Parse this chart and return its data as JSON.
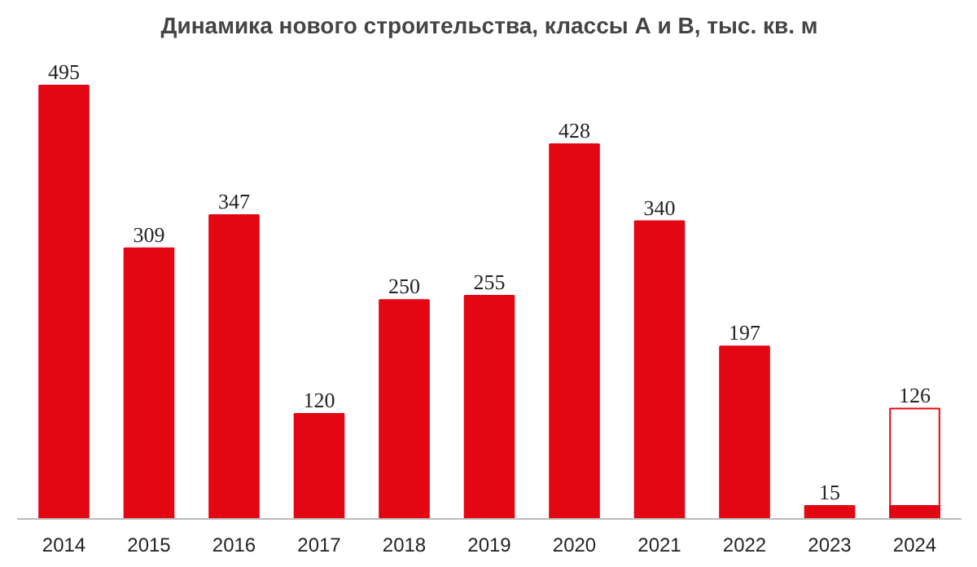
{
  "chart_data": {
    "type": "bar",
    "title": "Динамика нового строительства, классы А и В, тыс. кв. м",
    "categories": [
      "2014",
      "2015",
      "2016",
      "2017",
      "2018",
      "2019",
      "2020",
      "2021",
      "2022",
      "2023",
      "2024"
    ],
    "series": [
      {
        "color": "#ffffff",
        "values": [
          null,
          null,
          null,
          null,
          null,
          null,
          null,
          null,
          null,
          null,
          126
        ],
        "value_labels": [
          null,
          null,
          null,
          null,
          null,
          null,
          null,
          null,
          null,
          null,
          "126"
        ]
      },
      {
        "color": "#e30613",
        "values": [
          495,
          309,
          347,
          120,
          250,
          255,
          428,
          340,
          197,
          15,
          15
        ],
        "value_labels": [
          "495",
          "309",
          "347",
          "120",
          "250",
          "255",
          "428",
          "340",
          "197",
          "15",
          null
        ]
      }
    ],
    "tick_labels": "x",
    "grid": false
  }
}
